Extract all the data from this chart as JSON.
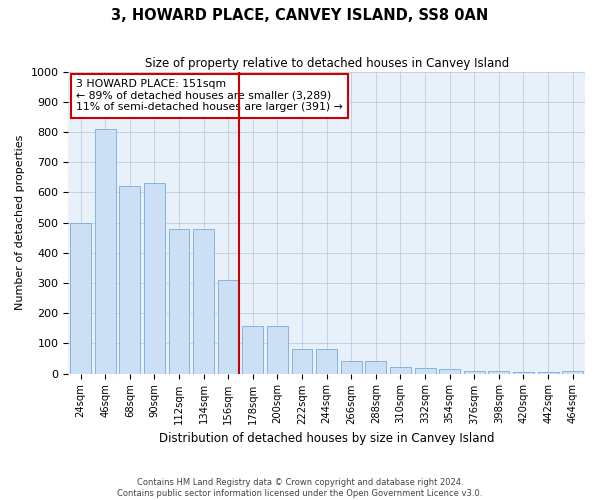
{
  "title": "3, HOWARD PLACE, CANVEY ISLAND, SS8 0AN",
  "subtitle": "Size of property relative to detached houses in Canvey Island",
  "xlabel": "Distribution of detached houses by size in Canvey Island",
  "ylabel": "Number of detached properties",
  "footer_line1": "Contains HM Land Registry data © Crown copyright and database right 2024.",
  "footer_line2": "Contains public sector information licensed under the Open Government Licence v3.0.",
  "categories": [
    "24sqm",
    "46sqm",
    "68sqm",
    "90sqm",
    "112sqm",
    "134sqm",
    "156sqm",
    "178sqm",
    "200sqm",
    "222sqm",
    "244sqm",
    "266sqm",
    "288sqm",
    "310sqm",
    "332sqm",
    "354sqm",
    "376sqm",
    "398sqm",
    "420sqm",
    "442sqm",
    "464sqm"
  ],
  "values": [
    500,
    810,
    620,
    630,
    480,
    480,
    310,
    158,
    158,
    80,
    80,
    42,
    42,
    22,
    18,
    14,
    10,
    8,
    6,
    5,
    8
  ],
  "bar_color": "#cce0f5",
  "bar_edge_color": "#7aaadd",
  "marker_idx": 6,
  "marker_label": "3 HOWARD PLACE: 151sqm",
  "annotation_line1": "← 89% of detached houses are smaller (3,289)",
  "annotation_line2": "11% of semi-detached houses are larger (391) →",
  "annotation_box_color": "#ffffff",
  "annotation_box_edge": "#cc0000",
  "marker_line_color": "#cc0000",
  "ylim": [
    0,
    1000
  ],
  "yticks": [
    0,
    100,
    200,
    300,
    400,
    500,
    600,
    700,
    800,
    900,
    1000
  ],
  "background_color": "#ffffff",
  "plot_bg_color": "#e8f0fa",
  "grid_color": "#c0cce0"
}
